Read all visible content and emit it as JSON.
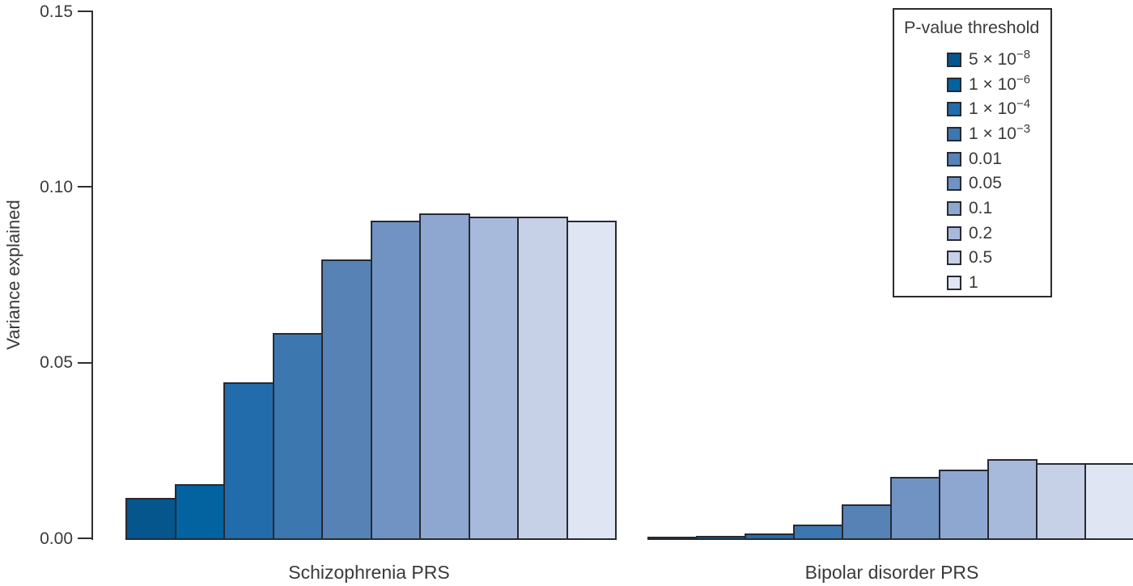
{
  "figure": {
    "ylabel": "Variance explained"
  },
  "legend": {
    "title": "P-value threshold",
    "items": [
      {
        "base": "5 × 10",
        "exp": "−8"
      },
      {
        "base": "1 × 10",
        "exp": "−6"
      },
      {
        "base": "1 × 10",
        "exp": "−4"
      },
      {
        "base": "1 × 10",
        "exp": "−3"
      },
      {
        "base": "0.01",
        "exp": ""
      },
      {
        "base": "0.05",
        "exp": ""
      },
      {
        "base": "0.1",
        "exp": ""
      },
      {
        "base": "0.2",
        "exp": ""
      },
      {
        "base": "0.5",
        "exp": ""
      },
      {
        "base": "1",
        "exp": ""
      }
    ]
  },
  "chart_data": {
    "type": "bar",
    "title": "",
    "xlabel": "",
    "ylabel": "Variance explained",
    "ylim": [
      0,
      0.15
    ],
    "grid": false,
    "legend_position": "top-right",
    "legend_title": "P-value threshold",
    "yticks": [
      {
        "value": 0.0,
        "label": "0.00"
      },
      {
        "value": 0.05,
        "label": "0.05"
      },
      {
        "value": 0.1,
        "label": "0.10"
      },
      {
        "value": 0.15,
        "label": "0.15"
      }
    ],
    "categories": [
      "Schizophrenia PRS",
      "Bipolar disorder PRS"
    ],
    "p_value_thresholds": [
      "5 × 10⁻⁸",
      "1 × 10⁻⁶",
      "1 × 10⁻⁴",
      "1 × 10⁻³",
      "0.01",
      "0.05",
      "0.1",
      "0.2",
      "0.5",
      "1"
    ],
    "series": [
      {
        "name": "Schizophrenia PRS",
        "values": [
          0.011,
          0.015,
          0.044,
          0.058,
          0.079,
          0.09,
          0.092,
          0.091,
          0.091,
          0.09
        ]
      },
      {
        "name": "Bipolar disorder PRS",
        "values": [
          0.0001,
          0.0003,
          0.001,
          0.0035,
          0.0093,
          0.017,
          0.019,
          0.022,
          0.021,
          0.021
        ]
      }
    ],
    "colors": [
      "#05568d",
      "#0363a0",
      "#226cab",
      "#3d77b0",
      "#5682b6",
      "#7093c3",
      "#8da7d0",
      "#a8badc",
      "#c6d1e8",
      "#dfe5f3"
    ],
    "outline_color": "#262a32"
  }
}
